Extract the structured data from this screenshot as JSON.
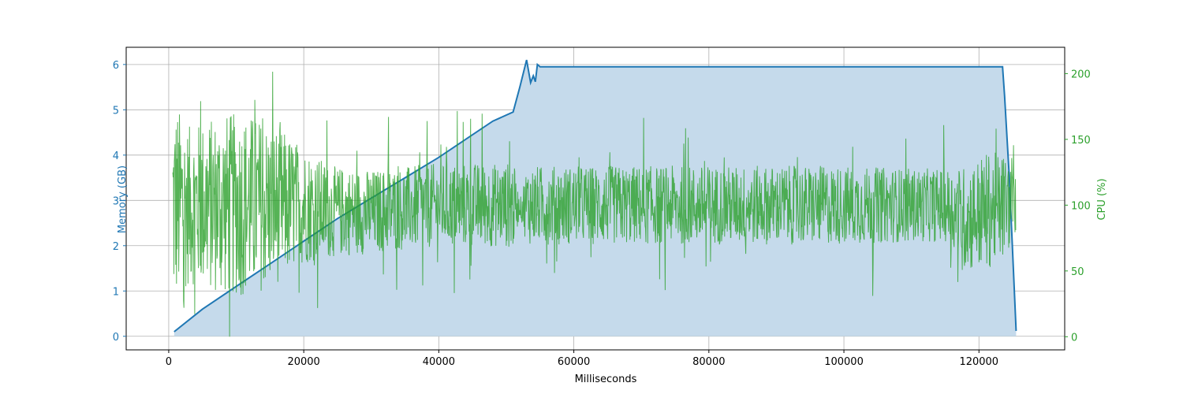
{
  "chart_data": {
    "type": "line",
    "xlabel": "Milliseconds",
    "ylabel_left": "Memory (GB)",
    "ylabel_right": "CPU (%)",
    "xlim": [
      -6300,
      132700
    ],
    "ylim_left": [
      -0.3,
      6.38
    ],
    "ylim_right": [
      -10,
      220
    ],
    "x_ticks": [
      0,
      20000,
      40000,
      60000,
      80000,
      100000,
      120000
    ],
    "x_tick_labels": [
      "0",
      "20000",
      "40000",
      "60000",
      "80000",
      "100000",
      "120000"
    ],
    "y_left_ticks": [
      0,
      1,
      2,
      3,
      4,
      5,
      6
    ],
    "y_left_tick_labels": [
      "0",
      "1",
      "2",
      "3",
      "4",
      "5",
      "6"
    ],
    "y_right_ticks": [
      0,
      50,
      100,
      150,
      200
    ],
    "y_right_tick_labels": [
      "0",
      "50",
      "100",
      "150",
      "200"
    ],
    "grid": true,
    "colors": {
      "memory": "#1f77b4",
      "memory_fill": "#c5daeb",
      "cpu": "#2ca02c"
    },
    "series": [
      {
        "axis": "left",
        "x": [
          800,
          5000,
          10000,
          15000,
          20000,
          25000,
          30000,
          35000,
          40000,
          42000,
          45000,
          48000,
          51000,
          52000,
          53000,
          53600,
          54000,
          54300,
          54600,
          55000,
          60000,
          80000,
          100000,
          120000,
          123500,
          123800,
          124500,
          125500
        ],
        "values": [
          0.1,
          0.6,
          1.1,
          1.6,
          2.1,
          2.6,
          3.05,
          3.5,
          3.95,
          4.15,
          4.45,
          4.75,
          4.95,
          5.5,
          6.1,
          5.6,
          5.75,
          5.62,
          6.0,
          5.95,
          5.95,
          5.95,
          5.95,
          5.95,
          5.95,
          5.3,
          3.5,
          0.12
        ]
      },
      {
        "axis": "right",
        "cpu_profile": {
          "x": [
            600,
            800,
            3000,
            8000,
            12000,
            16000,
            20000,
            24000,
            30000,
            40000,
            45000,
            50000,
            51000,
            52000,
            53000,
            60000,
            70000,
            80000,
            90000,
            100000,
            110000,
            115000,
            118000,
            121000,
            124000,
            125500
          ],
          "mean": [
            100,
            100,
            100,
            100,
            100,
            100,
            100,
            95,
            95,
            100,
            100,
            100,
            100,
            98,
            100,
            100,
            100,
            100,
            100,
            100,
            100,
            100,
            90,
            95,
            100,
            100
          ],
          "amplitude": [
            80,
            80,
            60,
            70,
            70,
            60,
            45,
            35,
            32,
            32,
            32,
            32,
            35,
            5,
            30,
            30,
            30,
            30,
            30,
            30,
            28,
            28,
            40,
            45,
            40,
            20
          ]
        }
      }
    ]
  }
}
